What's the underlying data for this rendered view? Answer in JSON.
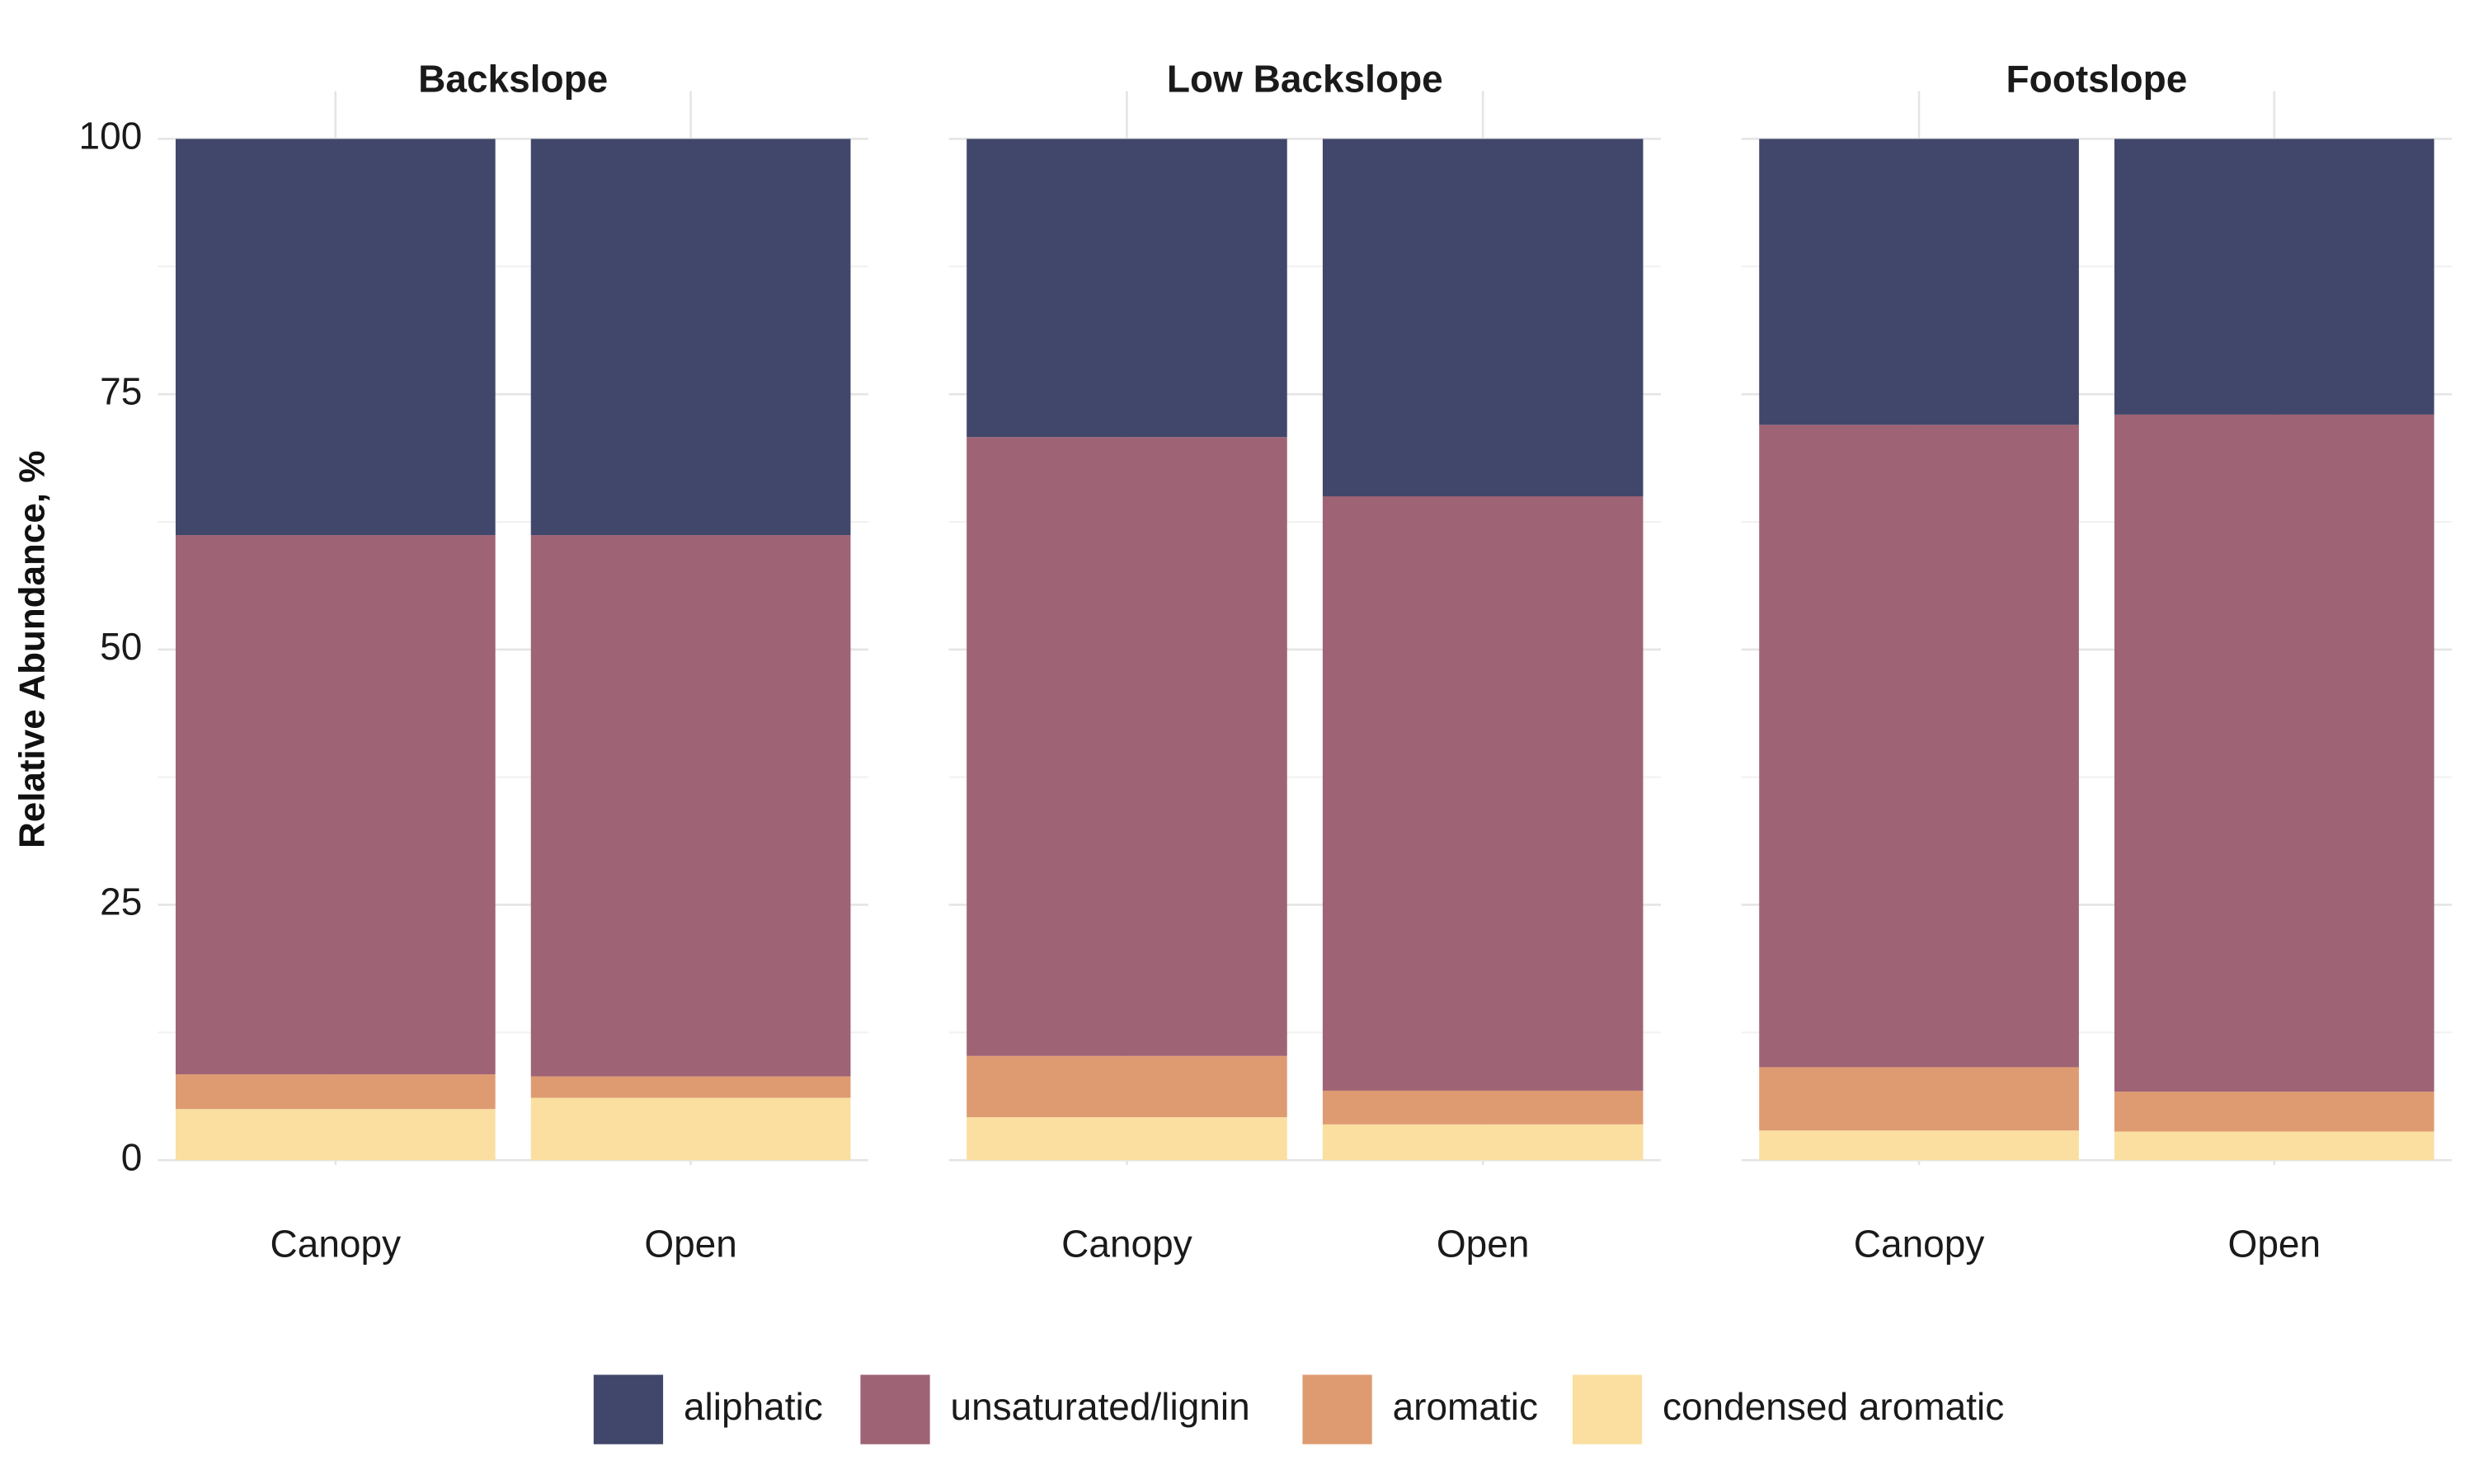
{
  "chart_data": {
    "type": "bar",
    "stacked": true,
    "ylabel": "Relative Abundance, %",
    "xlabel": "",
    "ylim": [
      0,
      100
    ],
    "yticks": [
      0,
      25,
      50,
      75,
      100
    ],
    "grid": true,
    "legend_position": "bottom",
    "categories": [
      "Canopy",
      "Open"
    ],
    "stack_order_bottom_to_top": [
      "condensed aromatic",
      "aromatic",
      "unsaturated/lignin",
      "aliphatic"
    ],
    "legend_order": [
      "aliphatic",
      "unsaturated/lignin",
      "aromatic",
      "condensed aromatic"
    ],
    "colors": {
      "aliphatic": "#41476B",
      "unsaturated/lignin": "#9E6374",
      "aromatic": "#DE9B71",
      "condensed aromatic": "#FADFA1"
    },
    "facets": [
      {
        "title": "Backslope",
        "series": [
          {
            "name": "condensed aromatic",
            "values": [
              5.0,
              6.1
            ]
          },
          {
            "name": "aromatic",
            "values": [
              3.4,
              2.1
            ]
          },
          {
            "name": "unsaturated/lignin",
            "values": [
              52.8,
              53.0
            ]
          },
          {
            "name": "aliphatic",
            "values": [
              38.8,
              38.8
            ]
          }
        ]
      },
      {
        "title": "Low Backslope",
        "series": [
          {
            "name": "condensed aromatic",
            "values": [
              4.2,
              3.5
            ]
          },
          {
            "name": "aromatic",
            "values": [
              6.0,
              3.3
            ]
          },
          {
            "name": "unsaturated/lignin",
            "values": [
              60.6,
              58.2
            ]
          },
          {
            "name": "aliphatic",
            "values": [
              29.2,
              35.0
            ]
          }
        ]
      },
      {
        "title": "Footslope",
        "series": [
          {
            "name": "condensed aromatic",
            "values": [
              2.9,
              2.8
            ]
          },
          {
            "name": "aromatic",
            "values": [
              6.2,
              3.9
            ]
          },
          {
            "name": "unsaturated/lignin",
            "values": [
              62.9,
              66.3
            ]
          },
          {
            "name": "aliphatic",
            "values": [
              28.0,
              27.0
            ]
          }
        ]
      }
    ]
  }
}
